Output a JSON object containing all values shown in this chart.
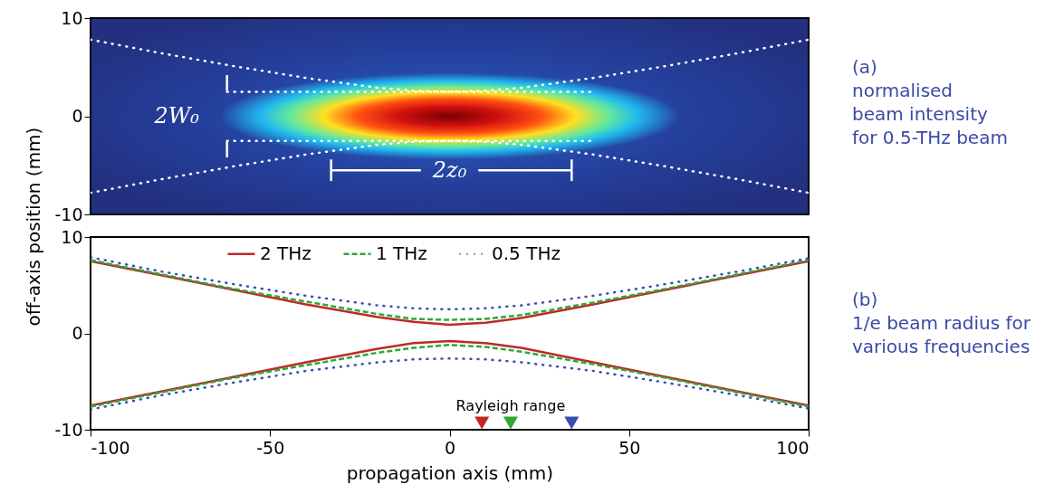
{
  "chart_data": [
    {
      "type": "line",
      "xlim": [
        -100,
        100
      ],
      "ylim": [
        -10,
        10
      ],
      "yticks": [
        -10,
        0,
        10
      ],
      "tick_labels": "y",
      "grid": false,
      "legend": false,
      "annotations": [
        "(a)",
        "normalised",
        "beam intensity",
        "for 0.5-THz beam",
        "2W₀",
        "2z₀"
      ],
      "series": [
        {
          "color": "#ffffff",
          "line_style": "dotted",
          "x": [
            -100,
            -80,
            -60,
            -40,
            -20,
            -10,
            0,
            10,
            20,
            40,
            60,
            80,
            100
          ],
          "values": [
            7.8,
            6.4,
            5.1,
            3.9,
            2.9,
            2.6,
            2.5,
            2.6,
            2.9,
            3.9,
            5.1,
            6.4,
            7.8
          ]
        },
        {
          "color": "#ffffff",
          "line_style": "dotted",
          "x": [
            -100,
            -80,
            -60,
            -40,
            -20,
            -10,
            0,
            10,
            20,
            40,
            60,
            80,
            100
          ],
          "values": [
            -7.8,
            -6.4,
            -5.1,
            -3.9,
            -2.9,
            -2.6,
            -2.5,
            -2.6,
            -2.9,
            -3.9,
            -5.1,
            -6.4,
            -7.8
          ]
        },
        {
          "color": "#ffffff",
          "line_style": "dotted",
          "x": [
            -62,
            40
          ],
          "values": [
            2.5,
            2.5
          ]
        },
        {
          "color": "#ffffff",
          "line_style": "dotted",
          "x": [
            -62,
            40
          ],
          "values": [
            -2.5,
            -2.5
          ]
        },
        {
          "color": "#ffffff",
          "line_style": "solid",
          "x": [
            -62,
            -62
          ],
          "values": [
            4.2,
            2.6
          ]
        },
        {
          "color": "#ffffff",
          "line_style": "solid",
          "x": [
            -62,
            -62
          ],
          "values": [
            -4.2,
            -2.6
          ]
        },
        {
          "color": "#ffffff",
          "line_style": "solid",
          "x": [
            -33,
            -8
          ],
          "values": [
            -5.5,
            -5.5
          ]
        },
        {
          "color": "#ffffff",
          "line_style": "solid",
          "x": [
            8,
            34
          ],
          "values": [
            -5.5,
            -5.5
          ]
        },
        {
          "color": "#ffffff",
          "line_style": "solid",
          "x": [
            -33,
            -33
          ],
          "values": [
            -4.4,
            -6.6
          ]
        },
        {
          "color": "#ffffff",
          "line_style": "solid",
          "x": [
            34,
            34
          ],
          "values": [
            -4.4,
            -6.6
          ]
        }
      ]
    },
    {
      "type": "line",
      "xlim": [
        -100,
        100
      ],
      "ylim": [
        -10,
        10
      ],
      "xticks": [
        -100,
        -50,
        0,
        50,
        100
      ],
      "yticks": [
        -10,
        0,
        10
      ],
      "xlabel": "propagation axis (mm)",
      "ylabel": "off-axis position (mm)",
      "grid": false,
      "legend": "top",
      "annotations": [
        "(b)",
        "1/e beam radius for",
        "various frequencies",
        "Rayleigh range"
      ],
      "series": [
        {
          "name": "2 THz",
          "color": "#c0282a",
          "line_style": "solid",
          "x": [
            -100,
            -80,
            -60,
            -40,
            -20,
            -10,
            0,
            10,
            20,
            40,
            60,
            80,
            100
          ],
          "values": [
            7.5,
            6.0,
            4.5,
            3.0,
            1.7,
            1.2,
            0.9,
            1.1,
            1.6,
            3.0,
            4.5,
            6.0,
            7.5
          ]
        },
        {
          "color": "#c0282a",
          "line_style": "solid",
          "x": [
            -100,
            -80,
            -60,
            -40,
            -20,
            -10,
            0,
            10,
            20,
            40,
            60,
            80,
            100
          ],
          "values": [
            -7.5,
            -6.0,
            -4.5,
            -3.0,
            -1.6,
            -1.0,
            -0.8,
            -1.0,
            -1.5,
            -3.0,
            -4.5,
            -6.0,
            -7.5
          ]
        },
        {
          "name": "1 THz",
          "color": "#2ea836",
          "line_style": "dashed",
          "x": [
            -100,
            -80,
            -60,
            -40,
            -20,
            -10,
            0,
            10,
            20,
            40,
            60,
            80,
            100
          ],
          "values": [
            7.6,
            6.1,
            4.6,
            3.3,
            2.0,
            1.5,
            1.4,
            1.5,
            1.9,
            3.2,
            4.6,
            6.1,
            7.6
          ]
        },
        {
          "color": "#2ea836",
          "line_style": "dashed",
          "x": [
            -100,
            -80,
            -60,
            -40,
            -20,
            -10,
            0,
            10,
            20,
            40,
            60,
            80,
            100
          ],
          "values": [
            -7.6,
            -6.1,
            -4.6,
            -3.3,
            -2.0,
            -1.5,
            -1.2,
            -1.4,
            -1.9,
            -3.2,
            -4.6,
            -6.1,
            -7.6
          ]
        },
        {
          "name": "0.5 THz",
          "color": "#3a4fb0",
          "line_style": "dotted",
          "x": [
            -100,
            -80,
            -60,
            -40,
            -20,
            -10,
            0,
            10,
            20,
            40,
            60,
            80,
            100
          ],
          "values": [
            7.9,
            6.4,
            5.1,
            3.9,
            2.9,
            2.6,
            2.5,
            2.6,
            2.9,
            3.9,
            5.1,
            6.4,
            7.8
          ]
        },
        {
          "color": "#3a4fb0",
          "line_style": "dotted",
          "x": [
            -100,
            -80,
            -60,
            -40,
            -20,
            -10,
            0,
            10,
            20,
            40,
            60,
            80,
            100
          ],
          "values": [
            -7.9,
            -6.4,
            -5.1,
            -3.9,
            -3.0,
            -2.7,
            -2.6,
            -2.7,
            -3.0,
            -3.9,
            -5.1,
            -6.4,
            -7.8
          ]
        },
        {
          "type": "scatter",
          "marker": "triangle",
          "color": "#c0282a",
          "x": [
            9
          ],
          "values": [
            -9.3
          ]
        },
        {
          "type": "scatter",
          "marker": "triangle",
          "color": "#2ea836",
          "x": [
            17
          ],
          "values": [
            -9.3
          ]
        },
        {
          "type": "scatter",
          "marker": "triangle",
          "color": "#3a4fb0",
          "x": [
            34
          ],
          "values": [
            -9.3
          ]
        }
      ]
    }
  ]
}
